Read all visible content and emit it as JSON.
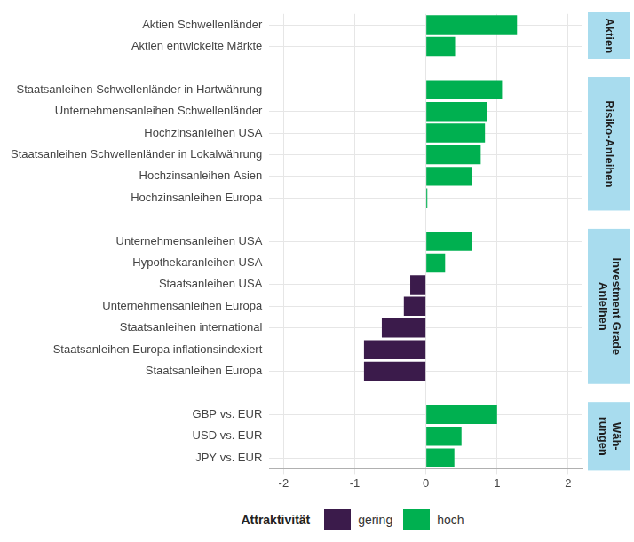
{
  "chart_data": {
    "type": "bar",
    "orientation": "horizontal",
    "stacked": true,
    "grid": true,
    "legend": "bottom",
    "legend_title": "Attraktivität",
    "categories": [
      "Aktien Schwellenländer",
      "Aktien entwickelte Märkte",
      null,
      "Staatsanleihen Schwellenländer in Hartwährung",
      "Unternehmensanleihen Schwellenländer",
      "Hochzinsanleihen USA",
      "Staatsanleihen Schwellenländer in Lokalwährung",
      "Hochzinsanleihen Asien",
      "Hochzinsanleihen Europa",
      null,
      "Unternehmensanleihen USA",
      "Hypothekaranleihen USA",
      "Staatsanleihen USA",
      "Unternehmensanleihen Europa",
      "Staatsanleihen international",
      "Staatsanleihen Europa inflationsindexiert",
      "Staatsanleihen Europa",
      null,
      "GBP vs. EUR",
      "USD vs. EUR",
      "JPY vs. EUR"
    ],
    "series": [
      {
        "name": "gering",
        "color": "#3b1b4b",
        "values": [
          null,
          null,
          null,
          null,
          null,
          null,
          null,
          null,
          null,
          null,
          null,
          null,
          -0.22,
          -0.31,
          -0.62,
          -0.87,
          -0.87,
          null,
          null,
          null,
          null
        ]
      },
      {
        "name": "hoch",
        "color": "#00b050",
        "values": [
          1.28,
          0.41,
          null,
          1.07,
          0.86,
          0.83,
          0.77,
          0.65,
          0.02,
          null,
          0.65,
          0.27,
          null,
          null,
          null,
          null,
          null,
          null,
          1.0,
          0.5,
          0.4
        ]
      }
    ],
    "xlim": [
      -2.2,
      2.2
    ],
    "xticks": [
      -2,
      -1,
      0,
      1,
      2
    ],
    "groups": [
      {
        "label": [
          "Aktien"
        ],
        "categories": [
          "Aktien Schwellenländer",
          "Aktien entwickelte Märkte"
        ]
      },
      {
        "label": [
          "Risiko-Anleihen"
        ],
        "categories": [
          "Staatsanleihen Schwellenländer in Hartwährung",
          "Unternehmensanleihen Schwellenländer",
          "Hochzinsanleihen USA",
          "Staatsanleihen Schwellenländer in Lokalwährung",
          "Hochzinsanleihen Asien",
          "Hochzinsanleihen Europa"
        ]
      },
      {
        "label": [
          "Investment Grade",
          "Anleihen"
        ],
        "categories": [
          "Unternehmensanleihen USA",
          "Hypothekaranleihen USA",
          "Staatsanleihen USA",
          "Unternehmensanleihen Europa",
          "Staatsanleihen international",
          "Staatsanleihen Europa inflationsindexiert",
          "Staatsanleihen Europa"
        ]
      },
      {
        "label": [
          "Wäh-",
          "rungen"
        ],
        "categories": [
          "GBP vs. EUR",
          "USD vs. EUR",
          "JPY vs. EUR"
        ]
      }
    ]
  }
}
